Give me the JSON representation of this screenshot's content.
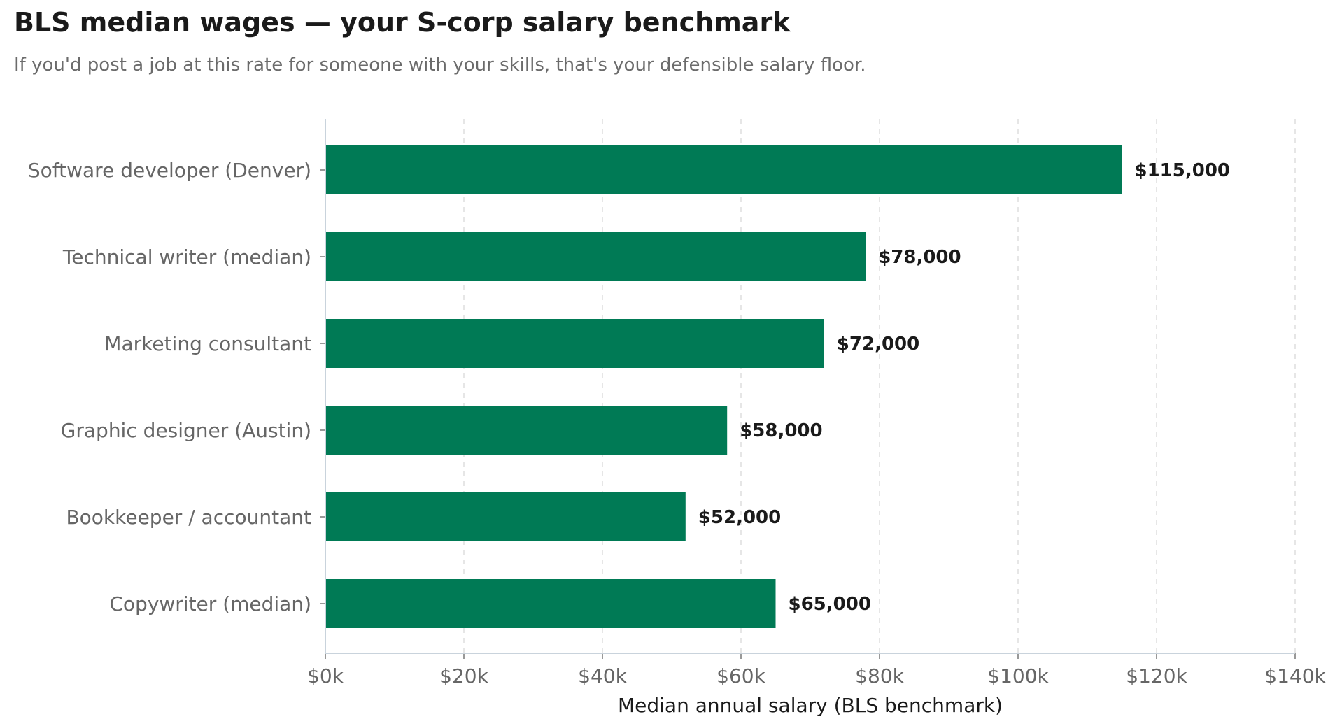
{
  "chart_data": {
    "type": "bar",
    "orientation": "horizontal",
    "title": "BLS median wages — your S-corp salary benchmark",
    "subtitle": "If you'd post a job at this rate for someone with your skills, that's your defensible salary floor.",
    "categories": [
      "Software developer (Denver)",
      "Technical writer (median)",
      "Marketing consultant",
      "Graphic designer (Austin)",
      "Bookkeeper / accountant",
      "Copywriter (median)"
    ],
    "values": [
      115000,
      78000,
      72000,
      58000,
      52000,
      65000
    ],
    "value_labels": [
      "$115,000",
      "$78,000",
      "$72,000",
      "$58,000",
      "$52,000",
      "$65,000"
    ],
    "xlabel": "Median annual salary (BLS benchmark)",
    "ylabel": "",
    "xlim": [
      0,
      140000
    ],
    "x_ticks": [
      0,
      20000,
      40000,
      60000,
      80000,
      100000,
      120000,
      140000
    ],
    "x_tick_labels": [
      "$0k",
      "$20k",
      "$40k",
      "$60k",
      "$80k",
      "$100k",
      "$120k",
      "$140k"
    ],
    "grid": "vertical dashed",
    "bar_color": "#007a55",
    "grid_color": "#dddddd",
    "axis_color": "#c9d3dc"
  }
}
